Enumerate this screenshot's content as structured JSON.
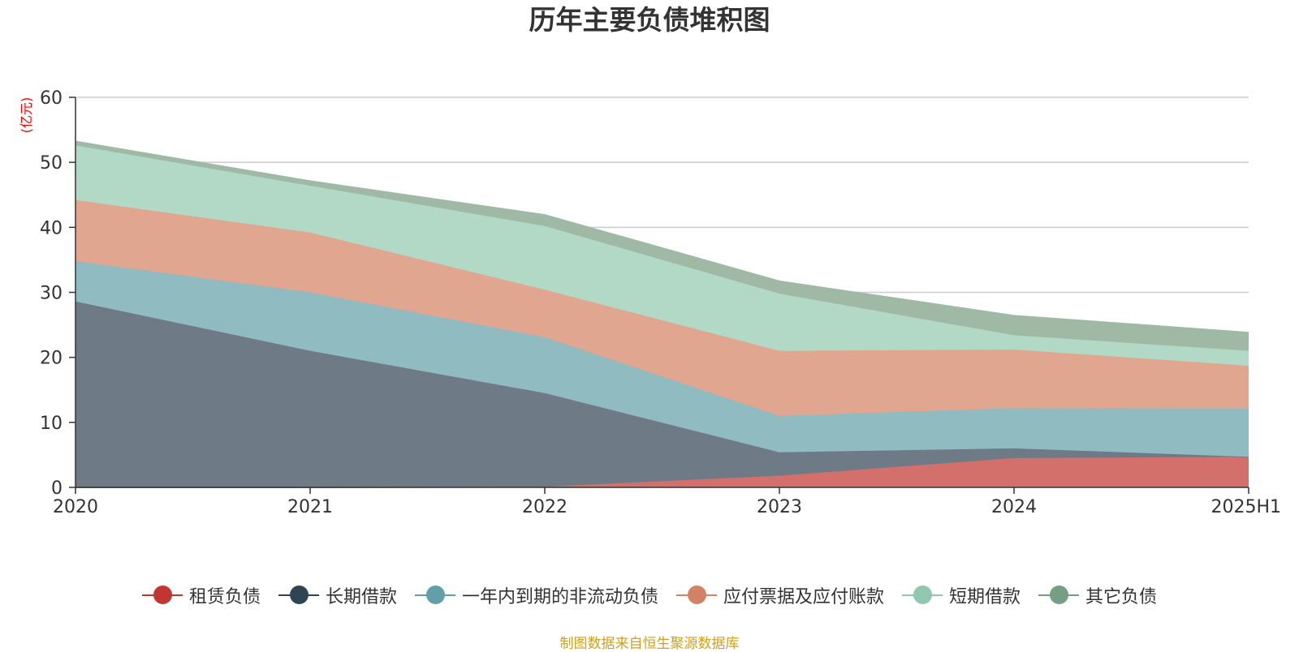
{
  "title": "历年主要负债堆积图",
  "unit_label": "(亿元)",
  "source_note": "制图数据来自恒生聚源数据库",
  "chart_data": {
    "type": "area",
    "stacked": true,
    "title": "历年主要负债堆积图",
    "ylabel": "(亿元)",
    "xlabel": "",
    "x": [
      "2020",
      "2021",
      "2022",
      "2023",
      "2024",
      "2025H1"
    ],
    "ylim": [
      0,
      60
    ],
    "yticks": [
      0,
      10,
      20,
      30,
      40,
      50,
      60
    ],
    "grid": true,
    "legend_position": "bottom",
    "series": [
      {
        "name": "租赁负债",
        "line_color": "#c23531",
        "fill_color": "#d4706c",
        "values": [
          0,
          0,
          0.1,
          1.8,
          4.5,
          4.7
        ]
      },
      {
        "name": "长期借款",
        "line_color": "#2f4554",
        "fill_color": "#6e7b86",
        "values": [
          28.6,
          21,
          14.4,
          3.6,
          1.5,
          0
        ]
      },
      {
        "name": "一年内到期的非流动负债",
        "line_color": "#61a0a8",
        "fill_color": "#8fbbc1",
        "values": [
          6.2,
          9,
          8.6,
          5.6,
          6.2,
          7.4
        ]
      },
      {
        "name": "应付票据及应付账款",
        "line_color": "#d48265",
        "fill_color": "#e0a68f",
        "values": [
          9.4,
          9.2,
          7.3,
          10,
          9,
          6.6
        ]
      },
      {
        "name": "短期借款",
        "line_color": "#91c7ae",
        "fill_color": "#b2d8c6",
        "values": [
          8.4,
          7.2,
          9.8,
          8.8,
          2.2,
          2.3
        ]
      },
      {
        "name": "其它负债",
        "line_color": "#749f83",
        "fill_color": "#9fb9a5",
        "values": [
          0.6,
          0.7,
          1.7,
          1.9,
          3.0,
          2.8
        ]
      }
    ]
  }
}
